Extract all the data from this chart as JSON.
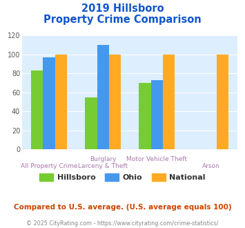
{
  "title_line1": "2019 Hillsboro",
  "title_line2": "Property Crime Comparison",
  "cat_labels_top": [
    "",
    "Burglary",
    "Motor Vehicle Theft",
    ""
  ],
  "cat_labels_bot": [
    "All Property Crime",
    "Larceny & Theft",
    "",
    "Arson"
  ],
  "series": {
    "Hillsboro": [
      83,
      55,
      70,
      0
    ],
    "Ohio": [
      97,
      110,
      73,
      0
    ],
    "National": [
      100,
      100,
      100,
      100
    ]
  },
  "colors": {
    "Hillsboro": "#77cc33",
    "Ohio": "#4499ee",
    "National": "#ffaa22"
  },
  "ylim": [
    0,
    120
  ],
  "yticks": [
    0,
    20,
    40,
    60,
    80,
    100,
    120
  ],
  "plot_bg": "#ddeeff",
  "title_color": "#1155cc",
  "xlabel_top_color": "#aa77aa",
  "xlabel_bot_color": "#aa77aa",
  "legend_label_color": "#333333",
  "footer_text": "Compared to U.S. average. (U.S. average equals 100)",
  "copyright_text": "© 2025 CityRating.com - https://www.cityrating.com/crime-statistics/",
  "footer_color": "#cc4400",
  "copyright_color": "#888888"
}
